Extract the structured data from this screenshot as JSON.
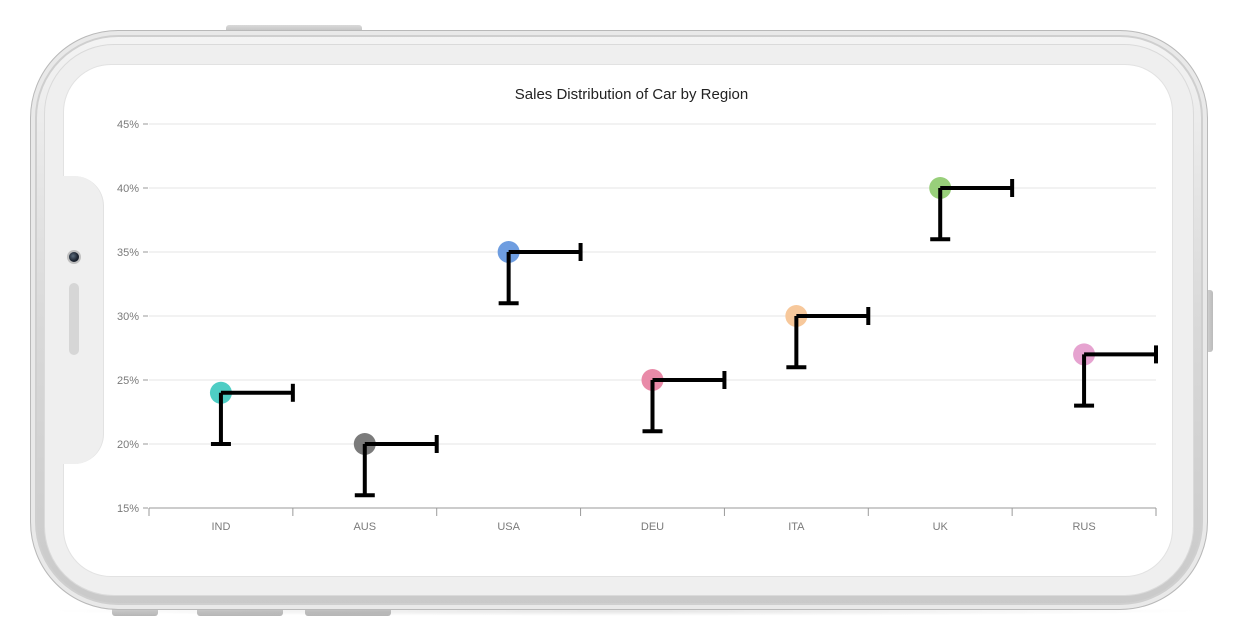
{
  "chart_data": {
    "type": "scatter",
    "title": "Sales Distribution of Car by Region",
    "xlabel": "",
    "ylabel": "",
    "categories": [
      "IND",
      "AUS",
      "USA",
      "DEU",
      "ITA",
      "UK",
      "RUS"
    ],
    "values": [
      24,
      20,
      35,
      25,
      30,
      40,
      27
    ],
    "error_bars": {
      "lower": [
        20,
        16,
        31,
        21,
        26,
        36,
        23
      ],
      "right_cap_x_offset": 0.5
    },
    "y_ticks": [
      "15%",
      "20%",
      "25%",
      "30%",
      "35%",
      "40%",
      "45%"
    ],
    "y_tick_values": [
      15,
      20,
      25,
      30,
      35,
      40,
      45
    ],
    "ylim": [
      15,
      45
    ],
    "grid": true,
    "legend": "none",
    "point_colors": [
      "#4ecdc4",
      "#7b7b7b",
      "#6e9de0",
      "#e98aa8",
      "#f7c89b",
      "#98cf7a",
      "#e6a3d0"
    ],
    "error_bar_color": "#000000"
  }
}
